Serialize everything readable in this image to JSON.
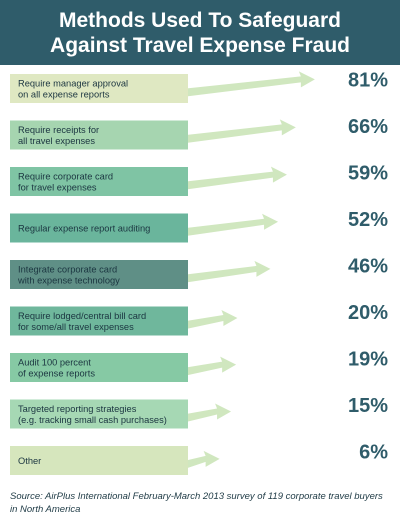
{
  "title": "Methods Used To Safeguard\nAgainst Travel Expense Fraud",
  "source": "Source: AirPlus International February-March 2013 survey of 119 corporate travel buyers in North America",
  "chart_data": {
    "type": "bar",
    "title": "Methods Used To Safeguard Against Travel Expense Fraud",
    "xlabel": "",
    "ylabel": "",
    "categories": [
      "Require manager approval on all expense reports",
      "Require receipts for all travel expenses",
      "Require corporate card for travel expenses",
      "Regular expense report auditing",
      "Integrate corporate card with expense technology",
      "Require lodged/central bill card for some/all travel expenses",
      "Audit 100 percent of expense reports",
      "Targeted reporting strategies (e.g. tracking small cash purchases)",
      "Other"
    ],
    "label_lines": [
      [
        "Require manager approval",
        "on all expense reports"
      ],
      [
        "Require receipts for",
        "all travel expenses"
      ],
      [
        "Require corporate card",
        "for travel expenses"
      ],
      [
        "Regular expense report auditing"
      ],
      [
        "Integrate corporate card",
        "with expense technology"
      ],
      [
        "Require lodged/central bill card",
        "for some/all travel expenses"
      ],
      [
        "Audit 100 percent",
        "of expense reports"
      ],
      [
        "Targeted reporting strategies",
        "(e.g. tracking small cash purchases)"
      ],
      [
        "Other"
      ]
    ],
    "values": [
      81,
      66,
      59,
      52,
      46,
      20,
      19,
      15,
      6
    ],
    "value_labels": [
      "81%",
      "66%",
      "59%",
      "52%",
      "46%",
      "20%",
      "19%",
      "15%",
      "6%"
    ],
    "ylim": [
      0,
      100
    ],
    "colors": {
      "box_fills": [
        "#dfe8c2",
        "#a6d5b0",
        "#7fc4a4",
        "#6ab59c",
        "#5f8f86",
        "#6fb79c",
        "#86c9a4",
        "#a6d8b4",
        "#d6e6bd"
      ],
      "arrow_fill": "#d0e7bf",
      "value_color": "#2f5c6a",
      "label_color": "#1b3540",
      "title_bar": "#2f5c6a"
    }
  }
}
